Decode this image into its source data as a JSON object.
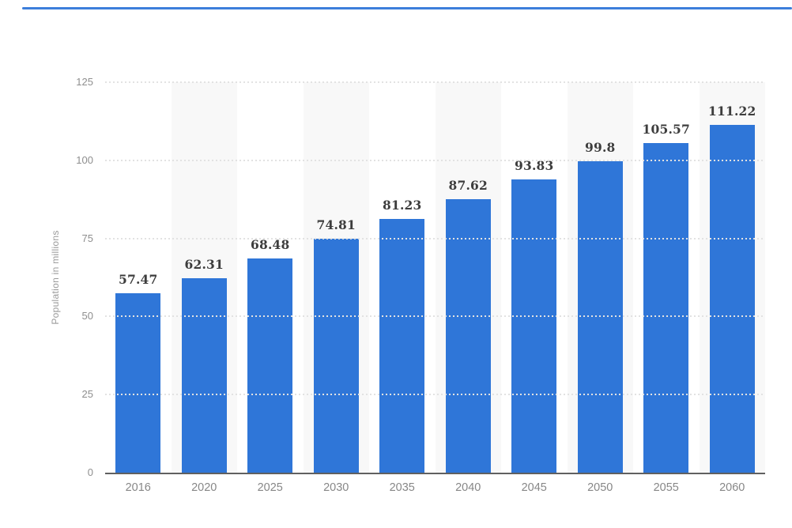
{
  "accent_line_color": "#3c7edb",
  "chart_data": {
    "type": "bar",
    "title": "",
    "xlabel": "",
    "ylabel": "Population in millions",
    "categories": [
      "2016",
      "2020",
      "2025",
      "2030",
      "2035",
      "2040",
      "2045",
      "2050",
      "2055",
      "2060"
    ],
    "values": [
      57.47,
      62.31,
      68.48,
      74.81,
      81.23,
      87.62,
      93.83,
      99.8,
      105.57,
      111.22
    ],
    "value_labels": [
      "57.47",
      "62.31",
      "68.48",
      "74.81",
      "81.23",
      "87.62",
      "93.83",
      "99.8",
      "105.57",
      "111.22"
    ],
    "ylim": [
      0,
      125
    ],
    "yticks": [
      0,
      25,
      50,
      75,
      100,
      125
    ],
    "grid": "horizontal-dotted",
    "legend": "none",
    "bar_color": "#2f76d8",
    "band_color": "#f8f8f8",
    "gridline_color": "#e2e2e2",
    "baseline_color": "#606060",
    "tick_label_color": "#8e8e8e",
    "value_label_color": "#3d3d3d",
    "axis_title_color": "#9a9a9a"
  }
}
